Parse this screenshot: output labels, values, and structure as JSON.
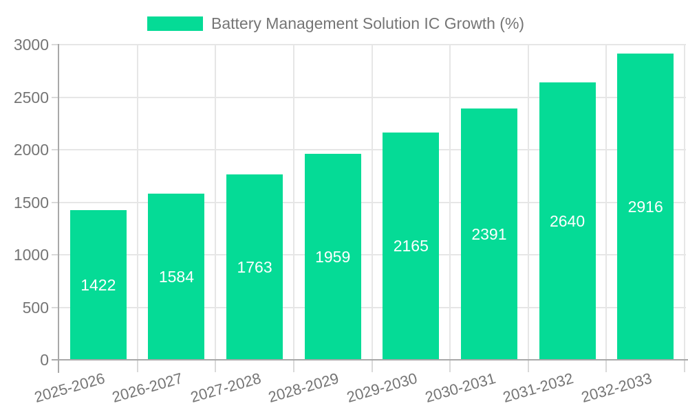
{
  "legend": {
    "label": "Battery Management Solution IC Growth (%)"
  },
  "chart_data": {
    "type": "bar",
    "title": "Battery Management Solution IC Growth (%)",
    "categories": [
      "2025-2026",
      "2026-2027",
      "2027-2028",
      "2028-2029",
      "2029-2030",
      "2030-2031",
      "2031-2032",
      "2032-2033"
    ],
    "values": [
      1422,
      1584,
      1763,
      1959,
      2165,
      2391,
      2640,
      2916
    ],
    "xlabel": "",
    "ylabel": "",
    "ylim": [
      0,
      3000
    ],
    "yticks": [
      0,
      500,
      1000,
      1500,
      2000,
      2500,
      3000
    ],
    "grid": true,
    "vertical_grid": true,
    "legend_position": "top-center",
    "value_labels": "inside-center",
    "colors": {
      "bar": "#05DB96",
      "axis_text": "#757575",
      "value_label": "#ffffff",
      "gridline": "#e6e6e6",
      "tick": "#d9d9d9",
      "axis_line": "#a8a8a8",
      "background": "#ffffff"
    }
  }
}
